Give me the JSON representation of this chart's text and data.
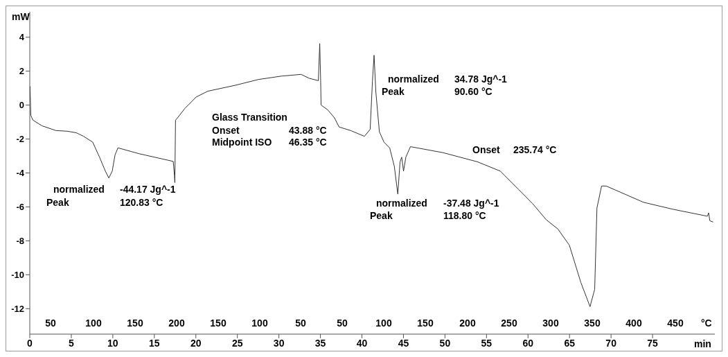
{
  "chart_data": {
    "type": "line",
    "ylabel": "mW",
    "xlabel": "min",
    "x2label": "°C",
    "xlim": [
      0,
      82.5
    ],
    "xticks": [
      0,
      5,
      10,
      15,
      20,
      25,
      30,
      35,
      40,
      45,
      50,
      55,
      60,
      65,
      70,
      75
    ],
    "ylim": [
      -13.5,
      5.5
    ],
    "yticks": [
      4,
      2,
      0,
      -2,
      -4,
      -6,
      -8,
      -10,
      -12
    ],
    "series": [
      {
        "color": "#333333",
        "x": [
          0,
          0.03,
          0.12,
          0.37,
          1.47,
          3.14,
          4.5,
          5.6,
          6.47,
          7.57,
          8.4,
          9.1,
          9.52,
          9.93,
          10.27,
          10.62,
          13.12,
          17.28,
          17.42,
          17.47,
          17.55,
          17.7,
          18.67,
          20.05,
          21.44,
          24.77,
          27.54,
          30.32,
          32.67,
          33.64,
          34.75,
          34.92,
          35.03,
          35.08,
          35.86,
          36.69,
          37.25,
          38.64,
          40.3,
          40.99,
          41.27,
          41.46,
          41.68,
          42.1,
          42.65,
          43.34,
          43.9,
          44.32,
          44.59,
          44.79,
          45.01,
          45.29,
          45.84,
          49.73,
          53.89,
          56.66,
          58.88,
          60.54,
          62.2,
          63.59,
          64.98,
          66.36,
          67.47,
          68.03,
          68.3,
          68.86,
          69.42,
          73.91,
          77.45,
          81.6,
          81.75,
          81.9,
          82.3
        ],
        "values": [
          0.2,
          1.1,
          -0.6,
          -0.88,
          -1.22,
          -1.5,
          -1.54,
          -1.63,
          -1.84,
          -2.18,
          -3.07,
          -3.89,
          -4.3,
          -3.89,
          -2.93,
          -2.52,
          -2.86,
          -3.32,
          -4.16,
          -4.57,
          -0.88,
          -0.81,
          -0.2,
          0.48,
          0.82,
          1.17,
          1.51,
          1.71,
          1.81,
          1.58,
          1.44,
          3.63,
          1.44,
          0,
          -0.27,
          -0.75,
          -1.29,
          -1.5,
          -1.84,
          -1.43,
          1.44,
          2.94,
          0.76,
          -1.57,
          -2.18,
          -2.52,
          -3.61,
          -5.25,
          -3.34,
          -3.07,
          -3.89,
          -3.07,
          -2.45,
          -2.8,
          -3.34,
          -3.89,
          -4.98,
          -5.8,
          -6.76,
          -7.3,
          -8.26,
          -10.45,
          -11.88,
          -10.86,
          -6.07,
          -4.77,
          -4.77,
          -5.73,
          -6.14,
          -6.55,
          -6.35,
          -6.82,
          -6.89
        ]
      }
    ],
    "annotations": [
      "normalized",
      "-44.17 Jg^-1",
      "Peak",
      "120.83 °C",
      "Glass Transition",
      "Onset",
      "43.88 °C",
      "Midpoint ISO",
      "46.35 °C",
      "normalized",
      "34.78 Jg^-1",
      "Peak",
      "90.60 °C",
      "Onset",
      "235.74 °C",
      "normalized",
      "-37.48 Jg^-1",
      "Peak",
      "118.80 °C",
      "50",
      "100",
      "150",
      "200",
      "150",
      "100",
      "50",
      "50",
      "100",
      "150",
      "200",
      "250",
      "300",
      "350",
      "400",
      "450"
    ]
  }
}
